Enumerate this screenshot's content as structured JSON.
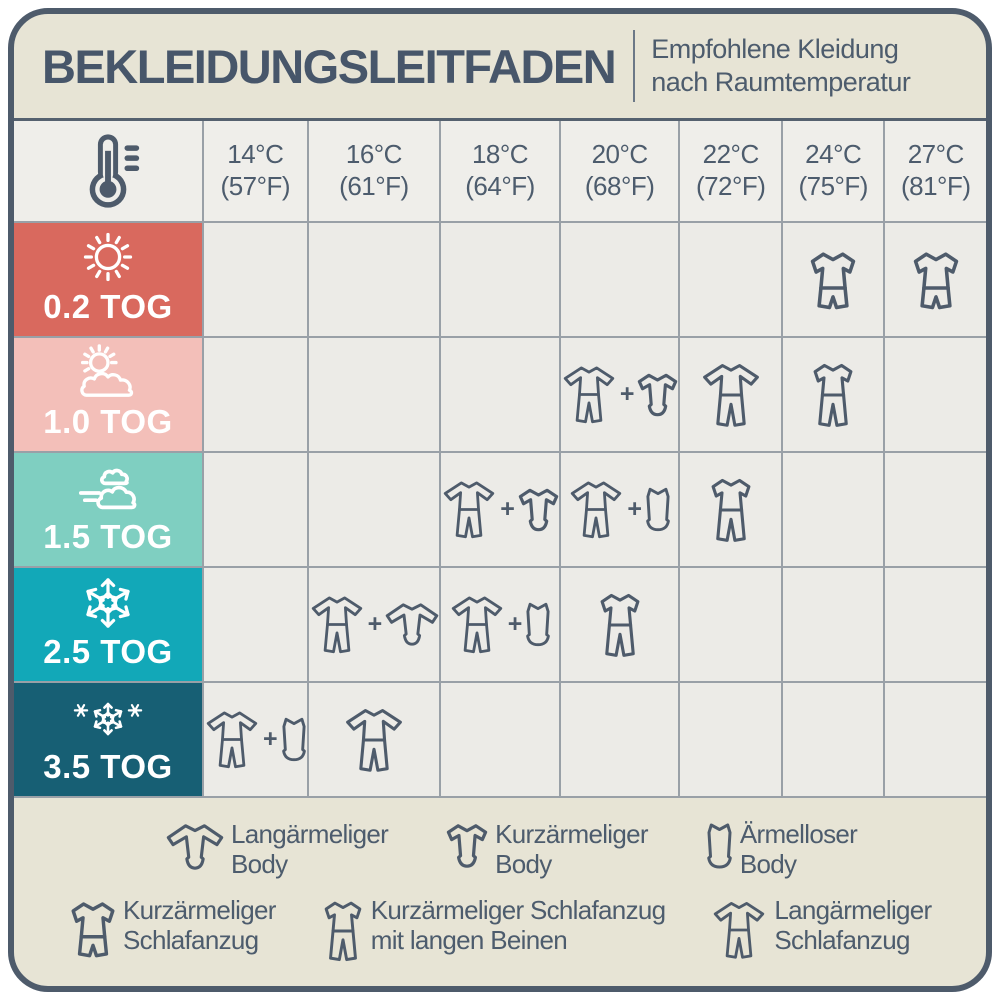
{
  "header": {
    "title": "BEKLEIDUNGSLEITFADEN",
    "subtitle_line1": "Empfohlene Kleidung",
    "subtitle_line2": "nach Raumtemperatur"
  },
  "colors": {
    "card_background": "#E7E4D5",
    "card_border": "#4E5B6B",
    "cell_background": "#ECEBE7",
    "header_cell_background": "#EFEEEA",
    "grid_line": "#99A0A7",
    "text_slate": "#4D5C6D",
    "tog_02": "#D9695E",
    "tog_10": "#F3BFB9",
    "tog_15": "#7FCFC1",
    "tog_25": "#12A8B8",
    "tog_35": "#175F74"
  },
  "chart_data": {
    "type": "table",
    "title": "BEKLEIDUNGSLEITFADEN",
    "corner_icon": "thermometer-icon",
    "columns": [
      {
        "celsius": "14°C",
        "fahrenheit": "(57°F)"
      },
      {
        "celsius": "16°C",
        "fahrenheit": "(61°F)"
      },
      {
        "celsius": "18°C",
        "fahrenheit": "(64°F)"
      },
      {
        "celsius": "20°C",
        "fahrenheit": "(68°F)"
      },
      {
        "celsius": "22°C",
        "fahrenheit": "(72°F)"
      },
      {
        "celsius": "24°C",
        "fahrenheit": "(75°F)"
      },
      {
        "celsius": "27°C",
        "fahrenheit": "(81°F)"
      }
    ],
    "rows": [
      {
        "tog": "0.2 TOG",
        "weather_icon": "sun-icon",
        "color": "#D9695E",
        "cells": [
          [],
          [],
          [],
          [],
          [],
          [
            "pajama-short-shorts-icon"
          ],
          [
            "pajama-short-shorts-icon"
          ]
        ]
      },
      {
        "tog": "1.0 TOG",
        "weather_icon": "sun-cloud-icon",
        "color": "#F3BFB9",
        "cells": [
          [],
          [],
          [],
          [
            "pajama-long-icon",
            "plus",
            "body-short-icon"
          ],
          [
            "pajama-long-icon"
          ],
          [
            "pajama-short-long-icon"
          ],
          []
        ]
      },
      {
        "tog": "1.5 TOG",
        "weather_icon": "wind-cloud-icon",
        "color": "#7FCFC1",
        "cells": [
          [],
          [],
          [
            "pajama-long-icon",
            "plus",
            "body-short-icon"
          ],
          [
            "pajama-long-icon",
            "plus",
            "body-sleeveless-icon"
          ],
          [
            "pajama-short-long-icon"
          ],
          [],
          []
        ]
      },
      {
        "tog": "2.5 TOG",
        "weather_icon": "snowflake-icon",
        "color": "#12A8B8",
        "cells": [
          [],
          [
            "pajama-long-icon",
            "plus",
            "body-long-icon"
          ],
          [
            "pajama-long-icon",
            "plus",
            "body-sleeveless-icon"
          ],
          [
            "pajama-short-long-icon"
          ],
          [],
          [],
          []
        ]
      },
      {
        "tog": "3.5 TOG",
        "weather_icon": "snowflakes-icon",
        "color": "#175F74",
        "cells": [
          [
            "pajama-long-icon",
            "plus",
            "body-sleeveless-icon"
          ],
          [
            "pajama-long-icon"
          ],
          [],
          [],
          [],
          [],
          []
        ]
      }
    ]
  },
  "legend": {
    "rows": [
      [
        {
          "icon": "body-long-icon",
          "label_lines": [
            "Langärmeliger",
            "Body"
          ]
        },
        {
          "icon": "body-short-icon",
          "label_lines": [
            "Kurzärmeliger",
            "Body"
          ]
        },
        {
          "icon": "body-sleeveless-icon",
          "label_lines": [
            "Ärmelloser",
            "Body"
          ]
        }
      ],
      [
        {
          "icon": "pajama-short-shorts-icon",
          "label_lines": [
            "Kurzärmeliger",
            "Schlafanzug"
          ]
        },
        {
          "icon": "pajama-short-long-icon",
          "label_lines": [
            "Kurzärmeliger Schlafanzug",
            "mit langen Beinen"
          ]
        },
        {
          "icon": "pajama-long-icon",
          "label_lines": [
            "Langärmeliger",
            "Schlafanzug"
          ]
        }
      ]
    ]
  }
}
